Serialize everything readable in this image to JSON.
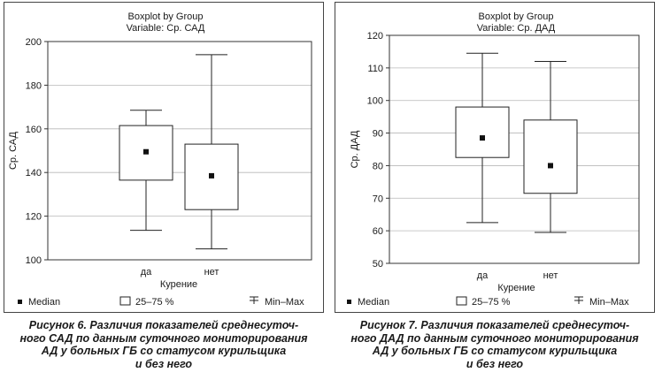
{
  "chart_data": [
    {
      "type": "boxplot",
      "title": "Boxplot by Group",
      "subtitle": "Variable: Ср. САД",
      "xlabel": "Курение",
      "ylabel": "Ср. САД",
      "ylim": [
        100,
        200
      ],
      "yticks": [
        "100",
        "120",
        "140",
        "160",
        "180",
        "200"
      ],
      "grid": true,
      "categories": [
        "да",
        "нет"
      ],
      "boxes": [
        {
          "category": "да",
          "min": 113.5,
          "q1": 136.5,
          "median": 149.5,
          "q3": 161.5,
          "max": 168.5
        },
        {
          "category": "нет",
          "min": 105,
          "q1": 123,
          "median": 138.5,
          "q3": 153,
          "max": 194
        }
      ],
      "legend": {
        "median": "Median",
        "box": "25–75 %",
        "whisker": "Min–Max"
      },
      "caption": [
        "Рисунок 6. Различия показателей среднесуточ-",
        "ного САД по данным суточного мониторирования",
        "АД у больных ГБ со статусом курильщика",
        "и без него"
      ]
    },
    {
      "type": "boxplot",
      "title": "Boxplot by Group",
      "subtitle": "Variable: Ср. ДАД",
      "xlabel": "Курение",
      "ylabel": "Ср. ДАД",
      "ylim": [
        50,
        120
      ],
      "yticks": [
        "50",
        "60",
        "70",
        "80",
        "90",
        "100",
        "110",
        "120"
      ],
      "grid": true,
      "categories": [
        "да",
        "нет"
      ],
      "boxes": [
        {
          "category": "да",
          "min": 62.5,
          "q1": 82.5,
          "median": 88.5,
          "q3": 98,
          "max": 114.5
        },
        {
          "category": "нет",
          "min": 59.5,
          "q1": 71.5,
          "median": 80,
          "q3": 94,
          "max": 112
        }
      ],
      "legend": {
        "median": "Median",
        "box": "25–75 %",
        "whisker": "Min–Max"
      },
      "caption": [
        "Рисунок 7. Различия показателей среднесуточ-",
        "ного ДАД по данным суточного мониторирования",
        "АД у больных ГБ со статусом курильщика",
        "и без него"
      ]
    }
  ]
}
